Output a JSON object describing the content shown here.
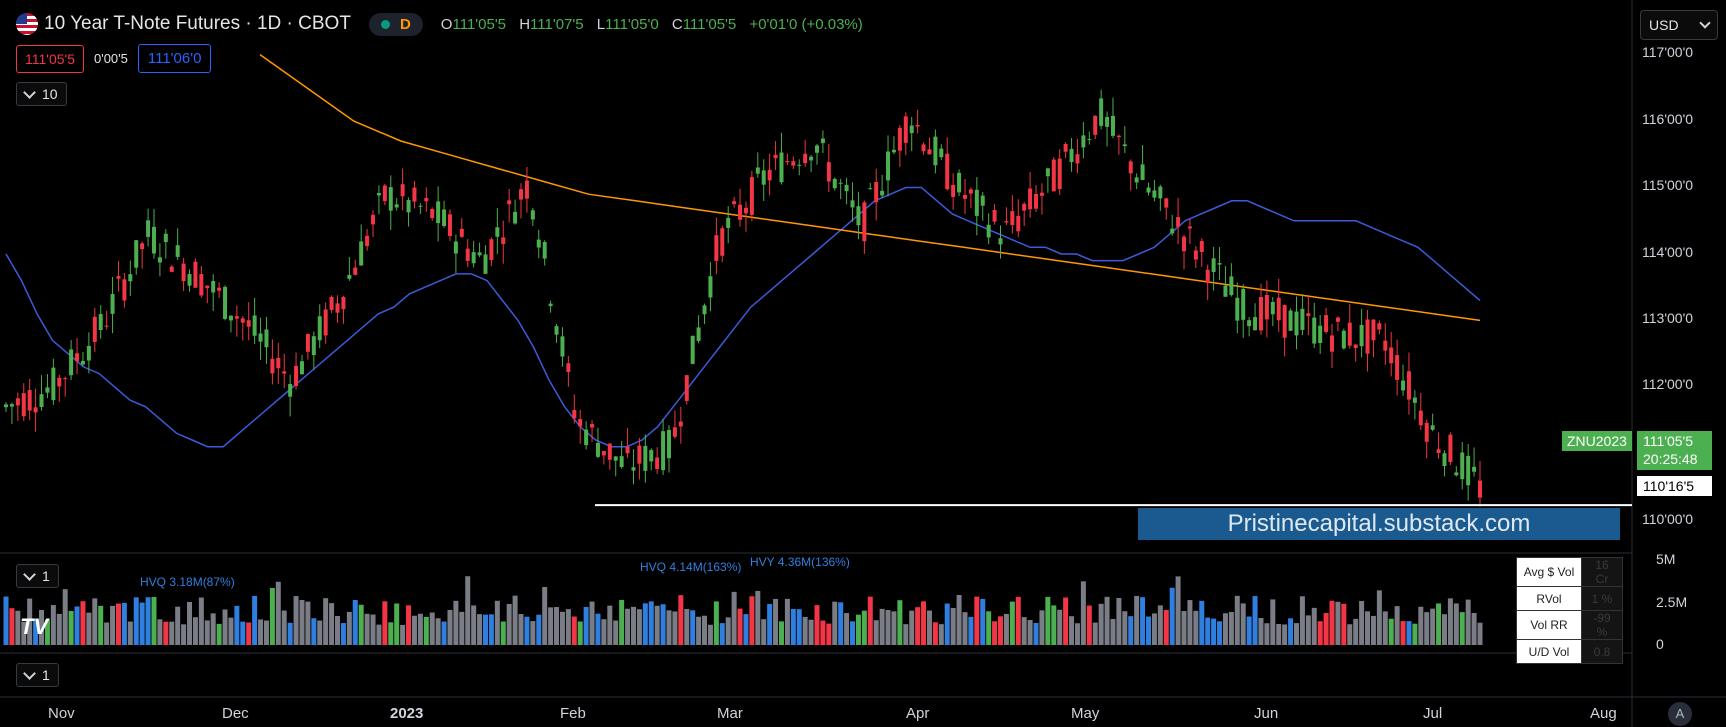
{
  "header": {
    "symbol_title": "10 Year T-Note Futures · 1D · CBOT",
    "market_status_badge": "D",
    "ohlc": {
      "open_label": "O",
      "open": "111'05'5",
      "high_label": "H",
      "high": "111'07'5",
      "low_label": "L",
      "low": "111'05'0",
      "close_label": "C",
      "close": "111'05'5",
      "change": "+0'01'0 (+0.03%)"
    },
    "bid": "111'05'5",
    "spread": "0'00'5",
    "ask": "111'06'0",
    "indicator_count": "10"
  },
  "currency_selector": "USD",
  "price_axis": {
    "labels": [
      "117'00'0",
      "116'00'0",
      "115'00'0",
      "114'00'0",
      "113'00'0",
      "112'00'0",
      "110'00'0"
    ]
  },
  "symbol_tag": "ZNU2023",
  "last_price": "111'05'5",
  "countdown": "20:25:48",
  "support_level_label": "110'16'5",
  "watermark": "Pristinecapital.substack.com",
  "volume_pane": {
    "pane_count": "1",
    "annotations": [
      "HVQ 3.18M(87%)",
      "HVQ 4.14M(163%)",
      "HVY 4.36M(136%)"
    ],
    "scale_labels": [
      "5M",
      "2.5M",
      "0"
    ],
    "stats": [
      {
        "label": "Avg $ Vol",
        "value": "16 Cr"
      },
      {
        "label": "RVol",
        "value": "1 %"
      },
      {
        "label": "Vol RR",
        "value": "-99 %"
      },
      {
        "label": "U/D Vol",
        "value": "0.8"
      }
    ]
  },
  "third_pane": {
    "pane_count": "1"
  },
  "time_axis": [
    "Nov",
    "Dec",
    "2023",
    "Feb",
    "Mar",
    "Apr",
    "May",
    "Jun",
    "Jul",
    "Aug"
  ],
  "auto_scale_button": "A",
  "chart_data": {
    "type": "line",
    "title": "10 Year T-Note Futures · 1D · CBOT",
    "ylim": [
      109.8,
      117.4
    ],
    "y_unit": "price (points, 32nds)",
    "support_level": 110.52,
    "series": [
      {
        "values": [
          114.3,
          113.9,
          113.4,
          113.0,
          112.8,
          112.6,
          112.5,
          112.3,
          112.1,
          112.0,
          111.8,
          111.6,
          111.5,
          111.4,
          111.4,
          111.6,
          111.8,
          112.0,
          112.2,
          112.4,
          112.6,
          112.8,
          113.0,
          113.2,
          113.4,
          113.5,
          113.7,
          113.8,
          113.9,
          114.0,
          114.0,
          113.9,
          113.6,
          113.3,
          112.9,
          112.4,
          112.0,
          111.7,
          111.5,
          111.4,
          111.4,
          111.5,
          111.7,
          112.0,
          112.3,
          112.6,
          112.9,
          113.2,
          113.5,
          113.7,
          113.9,
          114.1,
          114.3,
          114.5,
          114.7,
          114.9,
          115.1,
          115.2,
          115.3,
          115.3,
          115.1,
          114.9,
          114.8,
          114.7,
          114.6,
          114.5,
          114.4,
          114.4,
          114.3,
          114.3,
          114.2,
          114.2,
          114.2,
          114.3,
          114.4,
          114.6,
          114.8,
          114.9,
          115.0,
          115.1,
          115.1,
          115.0,
          114.9,
          114.8,
          114.8,
          114.8,
          114.8,
          114.8,
          114.7,
          114.6,
          114.5,
          114.4,
          114.2,
          114.0,
          113.8,
          113.6
        ]
      },
      {
        "values": [
          117.3,
          116.8,
          116.3,
          116.0,
          115.8,
          115.6,
          115.4,
          115.2,
          115.1,
          115.0,
          114.9,
          114.8,
          114.7,
          114.6,
          114.5,
          114.4,
          114.3,
          114.2,
          114.1,
          114.0,
          113.9,
          113.8,
          113.7,
          113.6,
          113.5,
          113.4,
          113.3
        ]
      }
    ]
  }
}
